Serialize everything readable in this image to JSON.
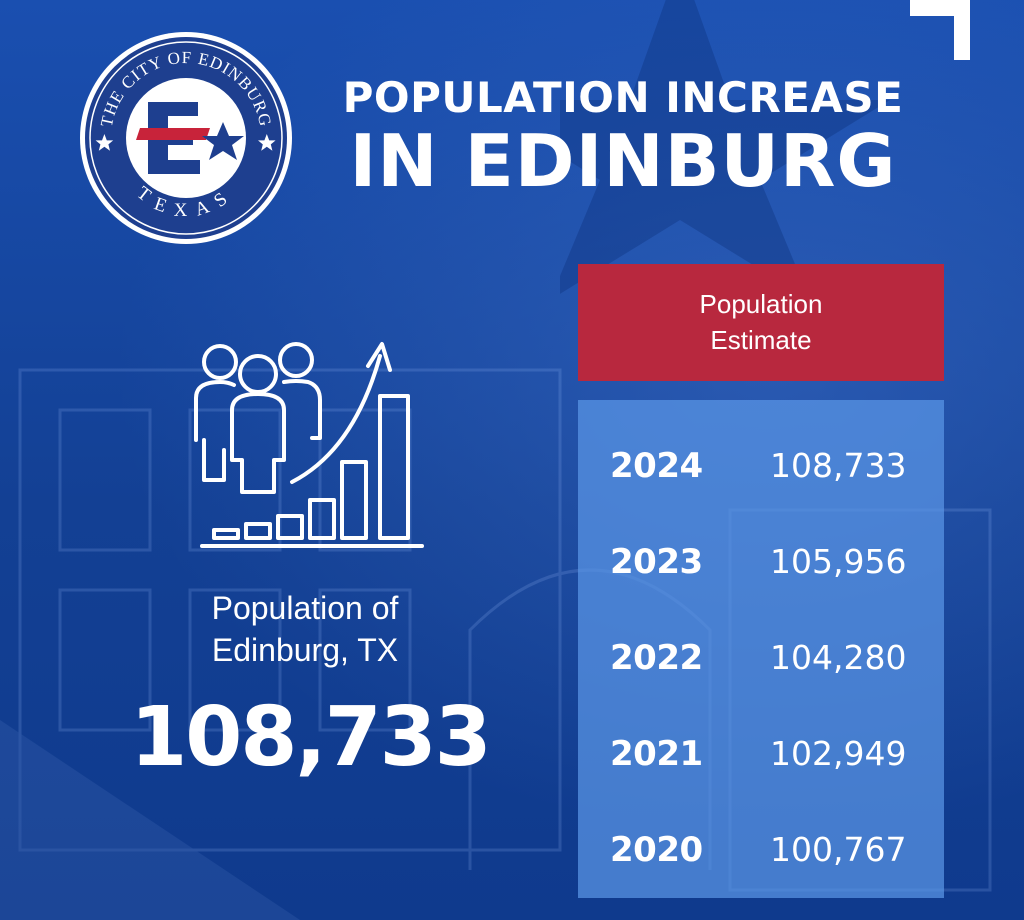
{
  "seal": {
    "top_text": "THE CITY OF EDINBURG",
    "bottom_text": "TEXAS",
    "monogram": "E",
    "colors": {
      "ring": "#1e3f8f",
      "red": "#c8233a",
      "blue": "#1e3f8f"
    }
  },
  "title": {
    "line1": "POPULATION INCREASE",
    "line2": "IN EDINBURG"
  },
  "summary": {
    "label_line1": "Population of",
    "label_line2": "Edinburg, TX",
    "value": "108,733",
    "icon": "population-growth-icon"
  },
  "table": {
    "header_line1": "Population",
    "header_line2": "Estimate",
    "rows": [
      {
        "year": "2024",
        "value": "108,733"
      },
      {
        "year": "2023",
        "value": "105,956"
      },
      {
        "year": "2022",
        "value": "104,280"
      },
      {
        "year": "2021",
        "value": "102,949"
      },
      {
        "year": "2020",
        "value": "100,767"
      }
    ]
  },
  "colors": {
    "background": "#134094",
    "header_red": "#b8283e",
    "table_blue": "#5a96e6",
    "text": "#ffffff"
  }
}
